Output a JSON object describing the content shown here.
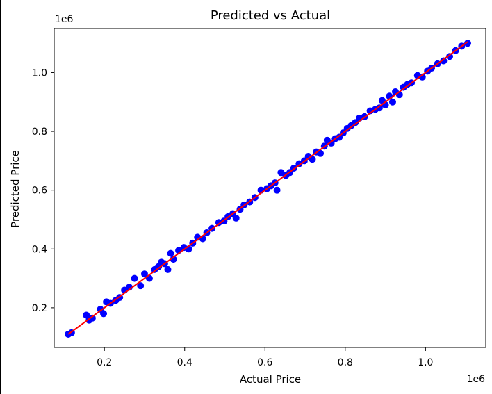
{
  "chart_data": {
    "type": "scatter",
    "title": "Predicted vs Actual",
    "xlabel": "Actual Price",
    "ylabel": "Predicted Price",
    "x_offset_label": "1e6",
    "y_offset_label": "1e6",
    "xlim": [
      75000,
      1150000
    ],
    "ylim": [
      65000,
      1150000
    ],
    "xticks": [
      200000,
      400000,
      600000,
      800000,
      1000000
    ],
    "xtick_labels": [
      "0.2",
      "0.4",
      "0.6",
      "0.8",
      "1.0"
    ],
    "yticks": [
      200000,
      400000,
      600000,
      800000,
      1000000
    ],
    "ytick_labels": [
      "0.2",
      "0.4",
      "0.6",
      "0.8",
      "1.0"
    ],
    "grid": false,
    "series": [
      {
        "type": "scatter",
        "color": "#0000ff",
        "x": [
          110000,
          118000,
          155000,
          162000,
          170000,
          190000,
          198000,
          205000,
          215000,
          228000,
          238000,
          250000,
          262000,
          275000,
          290000,
          300000,
          312000,
          325000,
          335000,
          342000,
          350000,
          358000,
          365000,
          372000,
          385000,
          398000,
          410000,
          420000,
          432000,
          445000,
          455000,
          468000,
          485000,
          498000,
          508000,
          520000,
          528000,
          538000,
          548000,
          562000,
          575000,
          590000,
          605000,
          615000,
          625000,
          630000,
          640000,
          652000,
          662000,
          672000,
          685000,
          698000,
          708000,
          718000,
          728000,
          738000,
          748000,
          755000,
          765000,
          775000,
          785000,
          795000,
          805000,
          815000,
          825000,
          835000,
          848000,
          862000,
          875000,
          885000,
          892000,
          900000,
          910000,
          918000,
          925000,
          935000,
          945000,
          955000,
          965000,
          980000,
          992000,
          1005000,
          1015000,
          1030000,
          1045000,
          1060000,
          1075000,
          1090000,
          1105000
        ],
        "y": [
          110000,
          115000,
          175000,
          158000,
          165000,
          195000,
          180000,
          220000,
          215000,
          225000,
          235000,
          260000,
          270000,
          300000,
          275000,
          315000,
          300000,
          330000,
          340000,
          355000,
          350000,
          330000,
          385000,
          365000,
          395000,
          405000,
          400000,
          420000,
          440000,
          435000,
          455000,
          470000,
          490000,
          495000,
          510000,
          520000,
          505000,
          535000,
          550000,
          560000,
          575000,
          600000,
          605000,
          615000,
          625000,
          600000,
          660000,
          650000,
          660000,
          675000,
          690000,
          700000,
          715000,
          705000,
          730000,
          725000,
          750000,
          770000,
          760000,
          775000,
          780000,
          795000,
          810000,
          820000,
          830000,
          845000,
          850000,
          870000,
          875000,
          880000,
          905000,
          890000,
          920000,
          900000,
          935000,
          925000,
          950000,
          960000,
          965000,
          990000,
          985000,
          1005000,
          1015000,
          1030000,
          1040000,
          1055000,
          1075000,
          1090000,
          1100000
        ]
      },
      {
        "type": "line",
        "color": "#ff0000",
        "x": [
          110000,
          1105000
        ],
        "y": [
          110000,
          1105000
        ]
      }
    ]
  }
}
